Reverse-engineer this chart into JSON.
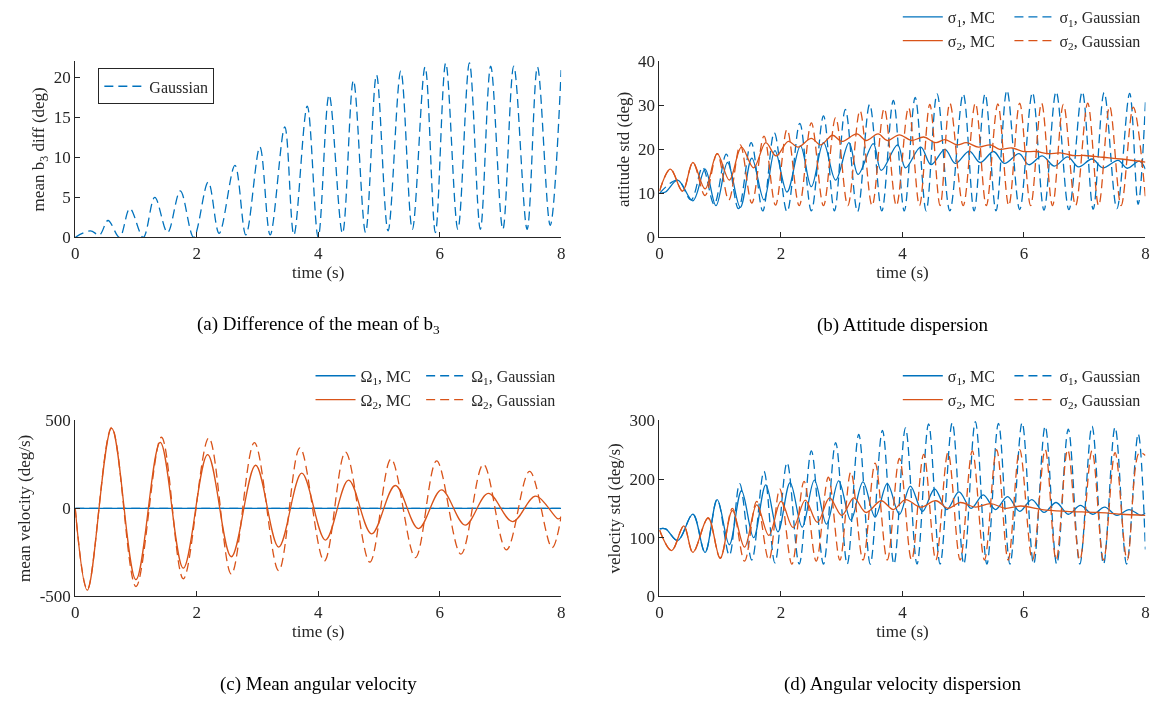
{
  "chart_data": [
    {
      "type": "line",
      "xlabel": "time (s)",
      "ylabel": "mean b$_{3}$ diff (deg)",
      "xlim": [
        0,
        8
      ],
      "xticks": [
        0,
        2,
        4,
        6,
        8
      ],
      "ylim": [
        0,
        22
      ],
      "yticks": [
        0,
        5,
        10,
        15,
        20
      ],
      "legend": "top left",
      "annotations": [
        "(a) Difference of the mean of b$_{3}$"
      ],
      "series": [
        {
          "name": "Gaussian",
          "color": "#0072bd",
          "line_style": "dashed",
          "x": [
            0,
            0.25,
            0.4,
            0.54,
            0.73,
            0.9,
            1.12,
            1.31,
            1.52,
            1.73,
            1.95,
            2.19,
            2.37,
            2.63,
            2.81,
            3.04,
            3.21,
            3.45,
            3.6,
            3.82,
            4.0,
            4.18,
            4.4,
            4.58,
            4.78,
            4.96,
            5.15,
            5.36,
            5.55,
            5.76,
            5.93,
            6.1,
            6.3,
            6.49,
            6.67,
            6.84,
            7.04,
            7.22,
            7.44,
            7.61,
            7.82,
            8.0
          ],
          "values": [
            0,
            0.8,
            0.3,
            2.1,
            0,
            3.6,
            0,
            5,
            0.6,
            5.8,
            0,
            6.9,
            0.5,
            9,
            0.3,
            11.3,
            0.3,
            13.8,
            0.3,
            16.4,
            0,
            17.8,
            0.5,
            19.6,
            0.6,
            20.3,
            0.8,
            20.8,
            1,
            21.3,
            0.6,
            21.8,
            1,
            21.8,
            1,
            21.4,
            1,
            21.4,
            1,
            21.3,
            1.5,
            20.9
          ]
        }
      ]
    },
    {
      "type": "line",
      "xlabel": "time (s)",
      "ylabel": "attitude std (deg)",
      "xlim": [
        0,
        8
      ],
      "xticks": [
        0,
        2,
        4,
        6,
        8
      ],
      "ylim": [
        0,
        40
      ],
      "yticks": [
        0,
        10,
        20,
        30,
        40
      ],
      "legend": "top right",
      "annotations": [
        "(b) Attitude dispersion"
      ],
      "series": [
        {
          "name": "σ$_{1}$, MC",
          "color": "#0072bd",
          "line_style": "solid",
          "x": [
            0,
            0.1,
            0.3,
            0.55,
            0.75,
            0.93,
            1.12,
            1.33,
            1.52,
            1.72,
            1.9,
            2.1,
            2.32,
            2.5,
            2.7,
            2.9,
            3.12,
            3.27,
            3.52,
            3.65,
            3.92,
            4.05,
            4.3,
            4.47,
            4.7,
            4.87,
            5.1,
            5.28,
            5.5,
            5.68,
            5.92,
            6.08,
            6.3,
            6.5,
            6.72,
            6.9,
            7.12,
            7.3,
            7.55,
            7.7,
            7.9,
            8
          ],
          "values": [
            10,
            10.3,
            13,
            8.3,
            15.5,
            7.2,
            17,
            6.8,
            18,
            8.5,
            19.7,
            10.3,
            20.8,
            11.5,
            21.5,
            13,
            21.5,
            14.3,
            21.3,
            15.2,
            21,
            15.8,
            20.5,
            16.5,
            20,
            16.8,
            19.6,
            17,
            19.5,
            16.8,
            19,
            16.5,
            18.5,
            16.2,
            18.3,
            16,
            17.8,
            15.8,
            17.5,
            15.7,
            17.3,
            15.5
          ]
        },
        {
          "name": "σ$_{1}$, Gaussian",
          "color": "#0072bd",
          "line_style": "dashed",
          "x": [
            0,
            0.3,
            0.52,
            0.71,
            0.9,
            1.1,
            1.3,
            1.51,
            1.7,
            1.89,
            2.1,
            2.31,
            2.5,
            2.7,
            2.88,
            3.06,
            3.26,
            3.46,
            3.66,
            3.85,
            4.03,
            4.21,
            4.39,
            4.57,
            4.78,
            5.0,
            5.18,
            5.36,
            5.54,
            5.72,
            5.93,
            6.14,
            6.33,
            6.53,
            6.74,
            6.96,
            7.14,
            7.32,
            7.53,
            7.74,
            7.88,
            8
          ],
          "values": [
            10,
            13,
            8.5,
            15.9,
            7.5,
            18.9,
            6.5,
            21.5,
            6,
            23.8,
            5.8,
            25.9,
            6,
            27.6,
            6,
            29.1,
            5.8,
            30.2,
            6,
            31.1,
            6,
            31.8,
            6,
            32.6,
            6,
            32.6,
            6,
            32.6,
            6,
            33.4,
            6.3,
            32.9,
            6.2,
            33.1,
            6.3,
            33.1,
            6.4,
            32.9,
            6.5,
            32.7,
            7.5,
            30.7
          ]
        },
        {
          "name": "σ$_{2}$, MC",
          "color": "#d95319",
          "line_style": "solid",
          "x": [
            0,
            0.18,
            0.38,
            0.55,
            0.75,
            0.95,
            1.15,
            1.35,
            1.55,
            1.75,
            1.92,
            2.12,
            2.28,
            2.5,
            2.65,
            2.85,
            3.0,
            3.25,
            3.4,
            3.6,
            3.75,
            3.95,
            4.15,
            4.35,
            4.55,
            4.7,
            4.9,
            5.05,
            5.25,
            5.45,
            5.6,
            5.8,
            6.0,
            6.2,
            6.4,
            6.6,
            6.8,
            7.0,
            7.3,
            7.6,
            8
          ],
          "values": [
            10.5,
            15.5,
            10.5,
            17,
            11,
            19,
            13,
            20.5,
            15.8,
            21.5,
            18.5,
            21.8,
            20.5,
            22.5,
            21,
            23.2,
            21.8,
            23.5,
            22,
            23.5,
            22,
            23.3,
            22,
            22.8,
            21.5,
            22.2,
            21,
            21.5,
            20.5,
            21,
            20,
            20.3,
            19.5,
            19.5,
            19,
            19.2,
            18.6,
            18.6,
            18.2,
            17.8,
            17.1
          ]
        },
        {
          "name": "σ$_{2}$, Gaussian",
          "color": "#d95319",
          "line_style": "dashed",
          "x": [
            0,
            0.18,
            0.38,
            0.55,
            0.75,
            0.95,
            1.14,
            1.33,
            1.52,
            1.72,
            1.91,
            2.1,
            2.3,
            2.5,
            2.7,
            2.9,
            3.1,
            3.3,
            3.5,
            3.7,
            3.9,
            4.1,
            4.28,
            4.45,
            4.62,
            4.78,
            5.0,
            5.2,
            5.38,
            5.57,
            5.75,
            5.93,
            6.11,
            6.29,
            6.47,
            6.65,
            6.85,
            7.05,
            7.23,
            7.41,
            7.6,
            7.8,
            8
          ],
          "values": [
            10.5,
            15.5,
            10.5,
            17,
            9.5,
            19,
            8.5,
            21,
            7.8,
            23,
            7.3,
            24.5,
            7.2,
            26,
            7.2,
            27.2,
            7.2,
            28.8,
            7.2,
            29.3,
            7.2,
            29.5,
            7.2,
            30.2,
            7.2,
            30.5,
            7.2,
            30.5,
            7.2,
            30.3,
            7.2,
            30.5,
            7.2,
            30.5,
            7.2,
            30.2,
            7.2,
            30.5,
            7.2,
            29.8,
            7.2,
            29.6,
            9
          ]
        }
      ]
    },
    {
      "type": "line",
      "xlabel": "time (s)",
      "ylabel": "mean velocity (deg/s)",
      "xlim": [
        0,
        8
      ],
      "xticks": [
        0,
        2,
        4,
        6,
        8
      ],
      "ylim": [
        -500,
        500
      ],
      "yticks": [
        -500,
        0,
        500
      ],
      "legend": "top right",
      "annotations": [
        "(c) Mean angular velocity"
      ],
      "series": [
        {
          "name": "Ω$_{1}$, MC",
          "color": "#0072bd",
          "line_style": "solid",
          "x": [
            0,
            8
          ],
          "values": [
            0,
            0
          ]
        },
        {
          "name": "Ω$_{1}$, Gaussian",
          "color": "#0072bd",
          "line_style": "dashed",
          "x": [
            0,
            8
          ],
          "values": [
            0,
            0
          ]
        },
        {
          "name": "Ω$_{2}$, MC",
          "color": "#d95319",
          "line_style": "solid",
          "x": [
            0,
            0.2,
            0.6,
            1.0,
            1.4,
            1.78,
            2.18,
            2.57,
            2.97,
            3.35,
            3.73,
            4.12,
            4.5,
            4.88,
            5.27,
            5.65,
            6.03,
            6.42,
            6.8,
            7.2,
            7.58,
            7.95,
            8
          ],
          "values": [
            0,
            -465,
            455,
            -405,
            375,
            -340,
            305,
            -275,
            245,
            -220,
            200,
            -180,
            160,
            -145,
            130,
            -115,
            105,
            -95,
            85,
            -75,
            70,
            -60,
            -50
          ]
        },
        {
          "name": "Ω$_{2}$, Gaussian",
          "color": "#d95319",
          "line_style": "dashed",
          "x": [
            0,
            0.2,
            0.6,
            1.0,
            1.42,
            1.78,
            2.2,
            2.57,
            2.95,
            3.35,
            3.7,
            4.1,
            4.45,
            4.85,
            5.2,
            5.6,
            5.95,
            6.35,
            6.72,
            7.1,
            7.48,
            7.85,
            8
          ],
          "values": [
            0,
            -460,
            460,
            -444,
            404,
            -400,
            400,
            -374,
            374,
            -354,
            344,
            -300,
            320,
            -306,
            280,
            -280,
            270,
            -260,
            250,
            -236,
            210,
            -224,
            -46
          ]
        }
      ]
    },
    {
      "type": "line",
      "xlabel": "time (s)",
      "ylabel": "velocity std (deg/s)",
      "xlim": [
        0,
        8
      ],
      "xticks": [
        0,
        2,
        4,
        6,
        8
      ],
      "ylim": [
        0,
        300
      ],
      "yticks": [
        0,
        100,
        200,
        300
      ],
      "legend": "top right",
      "annotations": [
        "(d) Angular velocity dispersion"
      ],
      "series": [
        {
          "name": "σ$_{1}$, MC",
          "color": "#0072bd",
          "line_style": "solid",
          "x": [
            0,
            0.1,
            0.3,
            0.55,
            0.75,
            0.95,
            1.15,
            1.35,
            1.55,
            1.75,
            1.95,
            2.15,
            2.35,
            2.55,
            2.75,
            2.95,
            3.15,
            3.35,
            3.55,
            3.75,
            3.95,
            4.13,
            4.33,
            4.53,
            4.73,
            4.93,
            5.13,
            5.33,
            5.53,
            5.73,
            5.93,
            6.13,
            6.33,
            6.53,
            6.73,
            6.93,
            7.13,
            7.33,
            7.53,
            7.73,
            7.93,
            8
          ],
          "values": [
            115,
            115,
            95,
            140,
            75,
            165,
            88,
            180,
            100,
            190,
            110,
            194,
            118,
            198,
            123,
            197,
            130,
            195,
            135,
            192,
            140,
            188,
            145,
            183,
            148,
            178,
            150,
            173,
            148,
            170,
            145,
            165,
            143,
            160,
            140,
            155,
            140,
            152,
            138,
            148,
            138,
            142
          ]
        },
        {
          "name": "σ$_{1}$, Gaussian",
          "color": "#0072bd",
          "line_style": "dashed",
          "x": [
            0,
            0.1,
            0.3,
            0.55,
            0.75,
            0.95,
            1.15,
            1.32,
            1.52,
            1.72,
            1.9,
            2.1,
            2.3,
            2.5,
            2.7,
            2.9,
            3.09,
            3.28,
            3.47,
            3.67,
            3.86,
            4.05,
            4.24,
            4.43,
            4.62,
            4.82,
            5.01,
            5.2,
            5.39,
            5.58,
            5.77,
            5.97,
            6.16,
            6.35,
            6.54,
            6.73,
            6.92,
            7.12,
            7.31,
            7.5,
            7.69,
            7.88,
            8
          ],
          "values": [
            115,
            115,
            95,
            140,
            75,
            165,
            70,
            192,
            62,
            213,
            57,
            228,
            55,
            248,
            55,
            262,
            55,
            276,
            55,
            283,
            55,
            287,
            55,
            294,
            55,
            296,
            55,
            298,
            55,
            295,
            55,
            296,
            55,
            290,
            55,
            285,
            55,
            290,
            55,
            288,
            55,
            277,
            80
          ]
        },
        {
          "name": "σ$_{2}$, MC",
          "color": "#d95319",
          "line_style": "solid",
          "x": [
            0,
            0.2,
            0.4,
            0.55,
            0.8,
            1.0,
            1.2,
            1.4,
            1.6,
            1.8,
            2.0,
            2.2,
            2.4,
            2.6,
            2.8,
            3.0,
            3.2,
            3.4,
            3.65,
            3.85,
            4.05,
            4.3,
            4.55,
            4.75,
            4.95,
            5.2,
            5.45,
            5.7,
            5.95,
            6.3,
            6.7,
            7.2,
            7.6,
            8
          ],
          "values": [
            113,
            78,
            120,
            75,
            134,
            65,
            146,
            84,
            156,
            104,
            162,
            117,
            164,
            126,
            168,
            138,
            168,
            143,
            163,
            148,
            165,
            152,
            163,
            150,
            160,
            152,
            158,
            150,
            154,
            148,
            145,
            143,
            140,
            138
          ]
        },
        {
          "name": "σ$_{2}$, Gaussian",
          "color": "#d95319",
          "line_style": "dashed",
          "x": [
            0,
            0.2,
            0.4,
            0.55,
            0.8,
            1.0,
            1.2,
            1.4,
            1.6,
            1.8,
            1.98,
            2.18,
            2.38,
            2.58,
            2.78,
            2.97,
            3.15,
            3.35,
            3.55,
            3.75,
            3.95,
            4.15,
            4.35,
            4.55,
            4.75,
            4.95,
            5.15,
            5.35,
            5.55,
            5.74,
            5.93,
            6.14,
            6.35,
            6.53,
            6.72,
            6.92,
            7.12,
            7.31,
            7.5,
            7.7,
            7.9,
            8
          ],
          "values": [
            113,
            78,
            120,
            75,
            133,
            65,
            150,
            60,
            162,
            62,
            183,
            55,
            196,
            60,
            203,
            62,
            212,
            62,
            227,
            62,
            235,
            62,
            242,
            62,
            245,
            62,
            248,
            62,
            250,
            62,
            250,
            62,
            250,
            62,
            250,
            62,
            248,
            62,
            245,
            62,
            245,
            240
          ]
        }
      ]
    }
  ]
}
